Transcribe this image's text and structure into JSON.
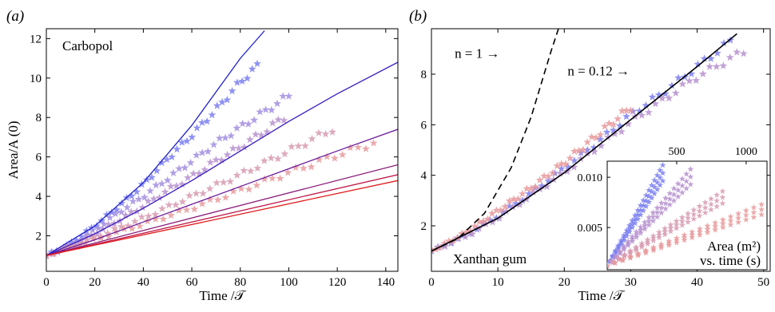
{
  "chart_data": [
    {
      "panel": "(a)",
      "type": "scatter",
      "title": "",
      "annotation": "Carbopol",
      "xlabel": "Time /𝒯",
      "ylabel": "Area/A (0)",
      "xlim": [
        0,
        145
      ],
      "ylim": [
        0.2,
        12.5
      ],
      "xticks": [
        0,
        20,
        40,
        60,
        80,
        100,
        120,
        140
      ],
      "yticks": [
        2,
        4,
        6,
        8,
        10,
        12
      ],
      "grid": false,
      "marker": "star",
      "series": [
        {
          "color": "#7b7ff0",
          "x": [
            0,
            10,
            20,
            30,
            40,
            50,
            60,
            70,
            80,
            87
          ],
          "y": [
            1.0,
            1.6,
            2.5,
            3.5,
            4.6,
            5.9,
            7.1,
            8.4,
            9.8,
            10.6
          ]
        },
        {
          "color": "#a28ee0",
          "x": [
            0,
            10,
            20,
            30,
            40,
            50,
            60,
            70,
            80,
            90,
            100
          ],
          "y": [
            1.0,
            1.5,
            2.3,
            3.2,
            4.0,
            4.9,
            5.8,
            6.7,
            7.5,
            8.3,
            9.1
          ]
        },
        {
          "color": "#b690cf",
          "x": [
            0,
            10,
            20,
            30,
            40,
            50,
            60,
            70,
            80,
            90,
            98
          ],
          "y": [
            1.0,
            1.45,
            2.1,
            2.8,
            3.5,
            4.3,
            5.0,
            5.8,
            6.5,
            7.3,
            8.0
          ]
        },
        {
          "color": "#d79bb2",
          "x": [
            0,
            20,
            40,
            60,
            80,
            100,
            118
          ],
          "y": [
            1.0,
            1.9,
            2.9,
            4.0,
            5.1,
            6.3,
            7.4
          ]
        },
        {
          "color": "#e89a9c",
          "x": [
            0,
            20,
            40,
            60,
            80,
            100,
            120,
            135
          ],
          "y": [
            1.0,
            1.8,
            2.6,
            3.4,
            4.3,
            5.2,
            6.1,
            6.7
          ]
        }
      ],
      "model_curves": [
        {
          "color": "#1f1fd0",
          "x": [
            0,
            20,
            40,
            60,
            80,
            90
          ],
          "y": [
            1.0,
            2.5,
            4.7,
            7.6,
            11.0,
            12.4
          ]
        },
        {
          "color": "#3a1cc0",
          "x": [
            0,
            20,
            40,
            60,
            80,
            100,
            120,
            145
          ],
          "y": [
            1.0,
            2.1,
            3.4,
            4.8,
            6.3,
            7.8,
            9.2,
            10.8
          ]
        },
        {
          "color": "#6a1a9a",
          "x": [
            0,
            20,
            40,
            60,
            80,
            100,
            120,
            145
          ],
          "y": [
            1.0,
            1.8,
            2.7,
            3.6,
            4.5,
            5.4,
            6.3,
            7.4
          ]
        },
        {
          "color": "#8a1a7a",
          "x": [
            0,
            145
          ],
          "y": [
            1.0,
            5.6
          ]
        },
        {
          "color": "#c01a4a",
          "x": [
            0,
            145
          ],
          "y": [
            1.0,
            5.1
          ]
        },
        {
          "color": "#e01a1a",
          "x": [
            0,
            145
          ],
          "y": [
            1.0,
            4.8
          ]
        }
      ]
    },
    {
      "panel": "(b)",
      "type": "scatter",
      "title": "",
      "annotation": "Xanthan gum",
      "xlabel": "Time /𝒯",
      "ylabel": "",
      "xlim": [
        0,
        51
      ],
      "ylim": [
        0.2,
        9.8
      ],
      "xticks": [
        0,
        10,
        20,
        30,
        40,
        50
      ],
      "yticks": [
        2,
        4,
        6,
        8
      ],
      "grid": false,
      "marker": "star",
      "series": [
        {
          "color": "#7b7ff0",
          "x": [
            0,
            5,
            10,
            15,
            20,
            25,
            30,
            35,
            40,
            45
          ],
          "y": [
            1.0,
            1.6,
            2.4,
            3.3,
            4.3,
            5.3,
            6.4,
            7.3,
            8.3,
            9.3
          ]
        },
        {
          "color": "#b690cf",
          "x": [
            0,
            5,
            10,
            15,
            20,
            25,
            30,
            35,
            40,
            47
          ],
          "y": [
            1.0,
            1.55,
            2.3,
            3.2,
            4.1,
            5.1,
            6.1,
            7.0,
            7.9,
            8.9
          ]
        },
        {
          "color": "#e89a9c",
          "x": [
            0,
            5,
            10,
            15,
            20,
            25,
            30
          ],
          "y": [
            1.0,
            1.7,
            2.6,
            3.5,
            4.5,
            5.6,
            6.7
          ]
        }
      ],
      "model_curves": [
        {
          "label": "n = 1",
          "style": "dashed",
          "color": "#000000",
          "x": [
            0,
            4,
            8,
            12,
            15,
            18,
            19.5
          ],
          "y": [
            1.0,
            1.5,
            2.5,
            4.3,
            6.3,
            8.9,
            10.1
          ]
        },
        {
          "label": "n = 0.12",
          "style": "solid",
          "color": "#000000",
          "x": [
            0,
            10,
            20,
            30,
            40,
            46
          ],
          "y": [
            1.0,
            2.3,
            4.1,
            6.2,
            8.3,
            9.6
          ]
        }
      ],
      "curve_labels": [
        {
          "text": "n = 1 →",
          "x": 3.5,
          "y": 8.65
        },
        {
          "text": "n = 0.12 →",
          "x": 20.5,
          "y": 7.95
        }
      ],
      "inset": {
        "label_line1": "Area (m²)",
        "label_line2": "vs. time (s)",
        "xlim": [
          0,
          1150
        ],
        "ylim": [
          0.0008,
          0.0116
        ],
        "xticks": [
          500,
          1000
        ],
        "yticks": [
          0.005,
          0.01
        ],
        "ytick_labels": [
          "0.005",
          "0.010"
        ],
        "series": [
          {
            "color": "#7b7ff0",
            "x": [
              0,
              400
            ],
            "y": [
              0.0012,
              0.0112
            ]
          },
          {
            "color": "#b690cf",
            "x": [
              0,
              600
            ],
            "y": [
              0.0012,
              0.0108
            ]
          },
          {
            "color": "#d79bb2",
            "x": [
              0,
              830
            ],
            "y": [
              0.0012,
              0.0086
            ]
          },
          {
            "color": "#e89a9c",
            "x": [
              0,
              1110
            ],
            "y": [
              0.0012,
              0.0073
            ]
          }
        ]
      }
    }
  ]
}
